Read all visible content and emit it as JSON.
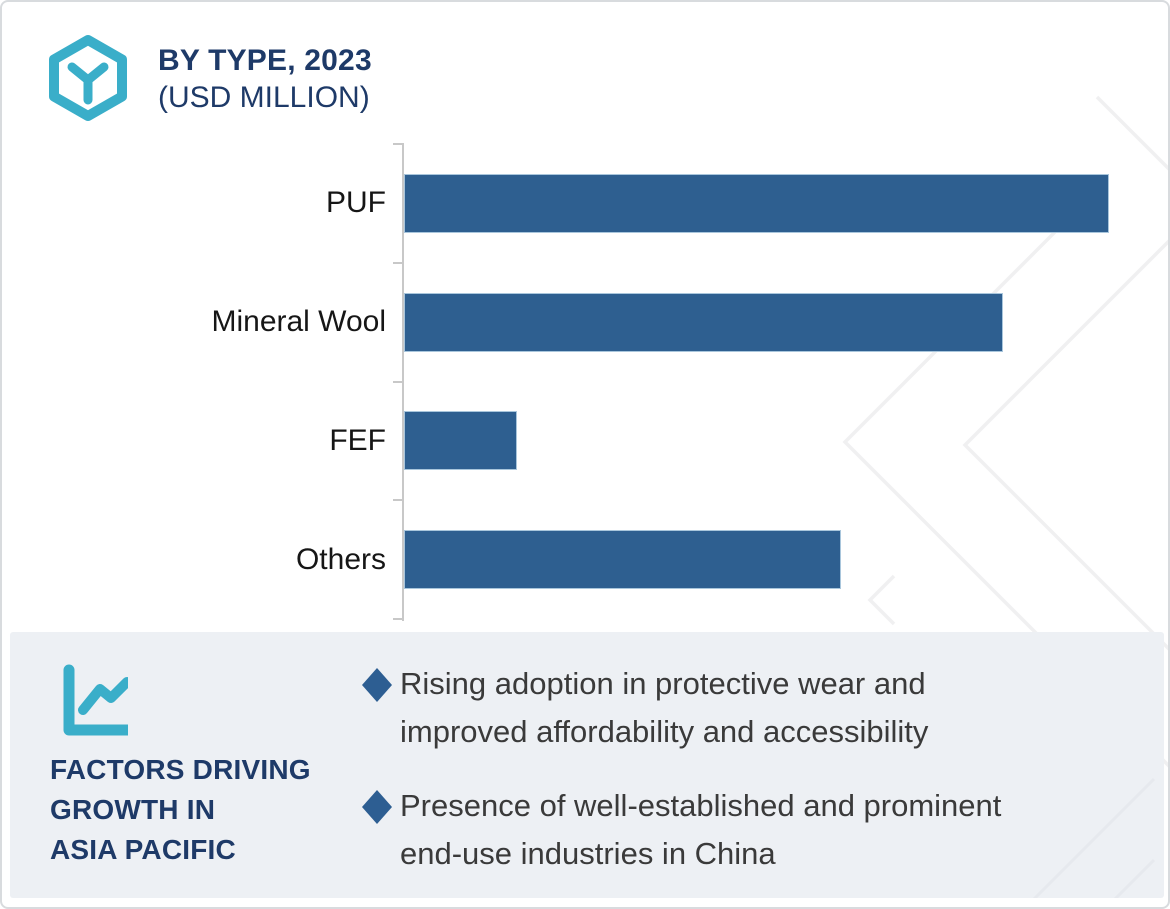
{
  "header": {
    "title_line1": "BY TYPE, 2023",
    "title_line2": "(USD MILLION)",
    "logo_icon": "hexagon-y-logo"
  },
  "chart_data": {
    "type": "bar",
    "orientation": "horizontal",
    "title": "BY TYPE, 2023 (USD MILLION)",
    "unit": "USD Million",
    "categories": [
      "PUF",
      "Mineral Wool",
      "FEF",
      "Others"
    ],
    "values_pct_of_max": [
      100,
      85,
      16,
      62
    ],
    "value_axis_labels_visible": false,
    "data_labels_visible": false,
    "grid": false,
    "legend": "none",
    "bar_color": "#2e5f90",
    "bar_border_color": "#a9c6dc",
    "axis_color": "#c8c8c8"
  },
  "panel": {
    "icon": "line-chart-icon",
    "heading": "FACTORS DRIVING\nGROWTH IN\nASIA PACIFIC",
    "bullets": [
      "Rising adoption in protective wear and\nimproved affordability and accessibility",
      "Presence of well-established and prominent\nend-use industries in China"
    ]
  },
  "colors": {
    "accent_cyan": "#3aaec9",
    "brand_navy": "#1e3a68",
    "bar_blue": "#2e5f90",
    "panel_background": "#edf0f4",
    "bullet_diamond": "#2d5e92",
    "body_text": "#3a3a3a",
    "watermark_gray": "#f0f0f1"
  }
}
